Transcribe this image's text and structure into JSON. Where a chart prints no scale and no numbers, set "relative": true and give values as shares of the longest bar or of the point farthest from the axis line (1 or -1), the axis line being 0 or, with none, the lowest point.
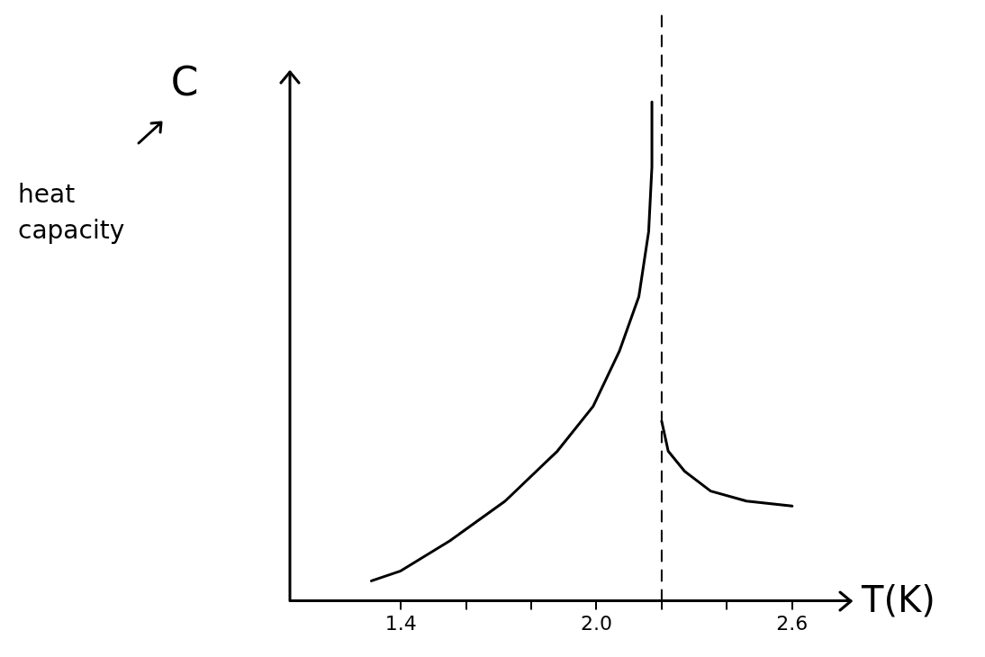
{
  "chart_data": {
    "type": "line",
    "xlabel": "T(K)",
    "ylabel": "C",
    "annotations": [
      "heat capacity"
    ],
    "relative": true,
    "grid": false,
    "legend": false,
    "marker": "none",
    "line_style": "solid",
    "xlim": [
      1.06,
      2.78
    ],
    "xticks": [
      1.4,
      {
        "value": 1.6,
        "label": null
      },
      {
        "value": 1.8,
        "label": null
      },
      {
        "value": 2.0,
        "label": "2.0"
      },
      {
        "value": 2.2,
        "label": null
      },
      {
        "value": 2.4,
        "label": null
      },
      2.6
    ],
    "series": [
      {
        "color": "#000000",
        "x": [
          1.31,
          1.4,
          1.55,
          1.72,
          1.88,
          1.99,
          2.07,
          2.13,
          2.16,
          2.17,
          2.17
        ],
        "values": [
          0.04,
          0.06,
          0.12,
          0.2,
          0.3,
          0.39,
          0.5,
          0.61,
          0.74,
          0.87,
          1.0
        ]
      },
      {
        "color": "#000000",
        "x": [
          2.2,
          2.22,
          2.27,
          2.35,
          2.46,
          2.6
        ],
        "values": [
          0.36,
          0.3,
          0.26,
          0.22,
          0.2,
          0.19
        ]
      }
    ],
    "ref_lines": [
      {
        "axis": "x",
        "value": 2.2,
        "line_style": "dashed",
        "color": "#000000"
      }
    ]
  }
}
